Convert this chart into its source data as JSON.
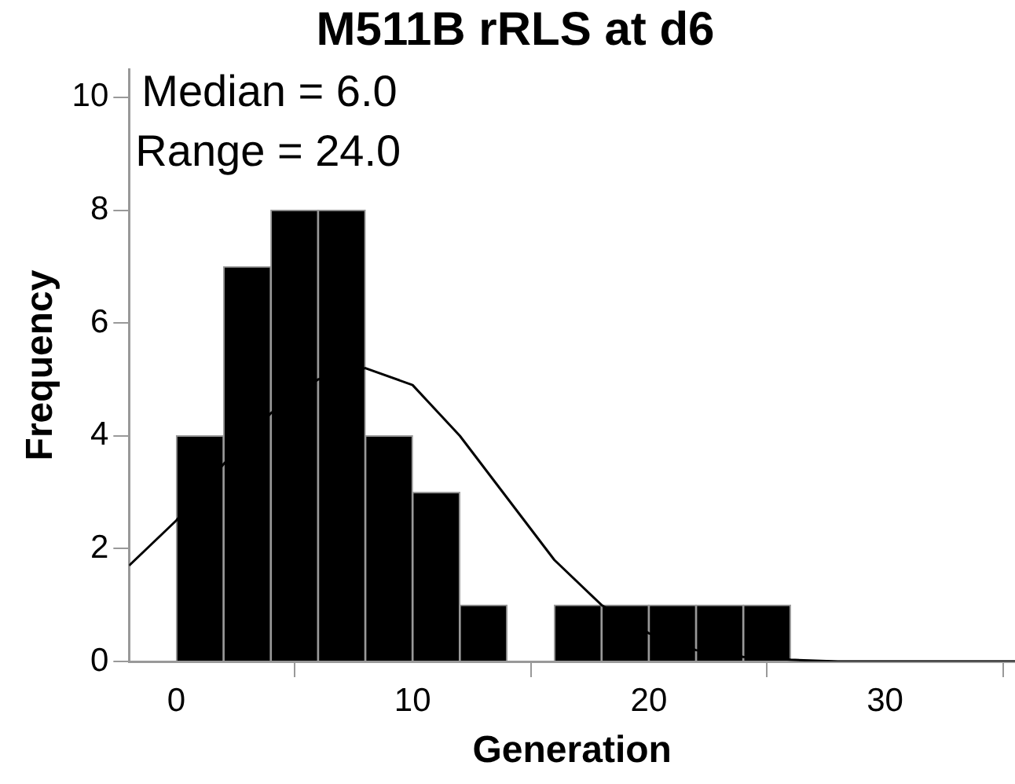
{
  "chart_data": {
    "type": "histogram",
    "title": "M511B rRLS at d6",
    "xlabel": "Generation",
    "ylabel": "Frequency",
    "bins": [
      0,
      2,
      4,
      6,
      8,
      10,
      12,
      14,
      16,
      18,
      20,
      22,
      24,
      26
    ],
    "values": [
      4,
      7,
      8,
      8,
      4,
      3,
      1,
      0,
      1,
      1,
      1,
      1,
      1
    ],
    "color": "#000000",
    "series": [
      {
        "type": "line",
        "color": "#000000",
        "x": [
          -2,
          0,
          2,
          4,
          6,
          8,
          10,
          12,
          14,
          16,
          18,
          20,
          22,
          24,
          26,
          28,
          30,
          32,
          34,
          35.5
        ],
        "values": [
          1.7,
          2.5,
          3.5,
          4.4,
          5.0,
          5.2,
          4.9,
          4.0,
          2.9,
          1.8,
          1.0,
          0.5,
          0.2,
          0.08,
          0.03,
          0,
          0,
          0,
          0,
          0
        ]
      }
    ],
    "annotations": [
      "Median = 6.0",
      "Range = 24.0"
    ],
    "xlim": [
      -2,
      35.5
    ],
    "xticks": [
      0,
      10,
      20,
      30
    ],
    "ylim": [
      0,
      10.5
    ],
    "yticks": [
      0,
      2,
      4,
      6,
      8,
      10
    ],
    "grid": false,
    "legend": false,
    "marker": "none",
    "line_style": "solid"
  }
}
